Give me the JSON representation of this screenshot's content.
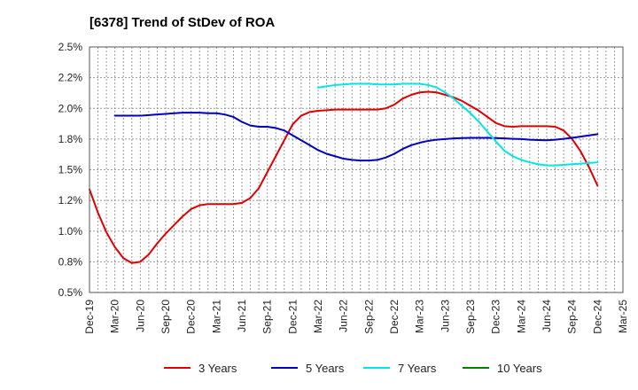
{
  "chart_data": {
    "type": "line",
    "title": "[6378]  Trend of StDev of ROA",
    "xlabel": "",
    "ylabel": "",
    "x_tick_labels": [
      "Dec-19",
      "Mar-20",
      "Jun-20",
      "Sep-20",
      "Dec-20",
      "Mar-21",
      "Jun-21",
      "Sep-21",
      "Dec-21",
      "Mar-22",
      "Jun-22",
      "Sep-22",
      "Dec-22",
      "Mar-23",
      "Jun-23",
      "Sep-23",
      "Dec-23",
      "Mar-24",
      "Jun-24",
      "Sep-24",
      "Dec-24",
      "Mar-25"
    ],
    "y_tick_labels": [
      "2.5%",
      "2.2%",
      "2.0%",
      "1.8%",
      "1.5%",
      "1.2%",
      "1.0%",
      "0.8%",
      "0.5%"
    ],
    "y_tick_values": [
      2.5,
      2.25,
      2.0,
      1.75,
      1.5,
      1.25,
      1.0,
      0.75,
      0.5
    ],
    "ylim": [
      0.5,
      2.5
    ],
    "grid": true,
    "legend_position": "bottom",
    "series": [
      {
        "name": "3 Years",
        "color": "#e00000",
        "points": [
          [
            "Dec-19",
            1.34
          ],
          [
            "Jan-20",
            1.15
          ],
          [
            "Feb-20",
            0.99
          ],
          [
            "Mar-20",
            0.87
          ],
          [
            "Apr-20",
            0.78
          ],
          [
            "May-20",
            0.74
          ],
          [
            "Jun-20",
            0.75
          ],
          [
            "Jul-20",
            0.81
          ],
          [
            "Aug-20",
            0.9
          ],
          [
            "Sep-20",
            0.98
          ],
          [
            "Oct-20",
            1.05
          ],
          [
            "Nov-20",
            1.12
          ],
          [
            "Dec-20",
            1.18
          ],
          [
            "Jan-21",
            1.21
          ],
          [
            "Feb-21",
            1.22
          ],
          [
            "Mar-21",
            1.22
          ],
          [
            "Apr-21",
            1.22
          ],
          [
            "May-21",
            1.22
          ],
          [
            "Jun-21",
            1.23
          ],
          [
            "Jul-21",
            1.27
          ],
          [
            "Aug-21",
            1.35
          ],
          [
            "Sep-21",
            1.48
          ],
          [
            "Oct-21",
            1.61
          ],
          [
            "Nov-21",
            1.74
          ],
          [
            "Dec-21",
            1.87
          ],
          [
            "Jan-22",
            1.94
          ],
          [
            "Feb-22",
            1.97
          ],
          [
            "Mar-22",
            1.98
          ],
          [
            "Apr-22",
            1.985
          ],
          [
            "May-22",
            1.99
          ],
          [
            "Jun-22",
            1.99
          ],
          [
            "Jul-22",
            1.99
          ],
          [
            "Aug-22",
            1.99
          ],
          [
            "Sep-22",
            1.99
          ],
          [
            "Oct-22",
            1.99
          ],
          [
            "Nov-22",
            2.0
          ],
          [
            "Dec-22",
            2.03
          ],
          [
            "Jan-23",
            2.08
          ],
          [
            "Feb-23",
            2.11
          ],
          [
            "Mar-23",
            2.13
          ],
          [
            "Apr-23",
            2.135
          ],
          [
            "May-23",
            2.13
          ],
          [
            "Jun-23",
            2.11
          ],
          [
            "Jul-23",
            2.09
          ],
          [
            "Aug-23",
            2.06
          ],
          [
            "Sep-23",
            2.02
          ],
          [
            "Oct-23",
            1.98
          ],
          [
            "Nov-23",
            1.93
          ],
          [
            "Dec-23",
            1.88
          ],
          [
            "Jan-24",
            1.855
          ],
          [
            "Feb-24",
            1.85
          ],
          [
            "Mar-24",
            1.855
          ],
          [
            "Apr-24",
            1.855
          ],
          [
            "May-24",
            1.855
          ],
          [
            "Jun-24",
            1.855
          ],
          [
            "Jul-24",
            1.85
          ],
          [
            "Aug-24",
            1.82
          ],
          [
            "Sep-24",
            1.75
          ],
          [
            "Oct-24",
            1.65
          ],
          [
            "Nov-24",
            1.52
          ],
          [
            "Dec-24",
            1.37
          ]
        ]
      },
      {
        "name": "5 Years",
        "color": "#0000c0",
        "points": [
          [
            "Mar-20",
            1.94
          ],
          [
            "Apr-20",
            1.94
          ],
          [
            "May-20",
            1.94
          ],
          [
            "Jun-20",
            1.94
          ],
          [
            "Jul-20",
            1.945
          ],
          [
            "Aug-20",
            1.95
          ],
          [
            "Sep-20",
            1.955
          ],
          [
            "Oct-20",
            1.96
          ],
          [
            "Nov-20",
            1.965
          ],
          [
            "Dec-20",
            1.965
          ],
          [
            "Jan-21",
            1.965
          ],
          [
            "Feb-21",
            1.96
          ],
          [
            "Mar-21",
            1.96
          ],
          [
            "Apr-21",
            1.95
          ],
          [
            "May-21",
            1.93
          ],
          [
            "Jun-21",
            1.89
          ],
          [
            "Jul-21",
            1.86
          ],
          [
            "Aug-21",
            1.85
          ],
          [
            "Sep-21",
            1.85
          ],
          [
            "Oct-21",
            1.84
          ],
          [
            "Nov-21",
            1.82
          ],
          [
            "Dec-21",
            1.78
          ],
          [
            "Jan-22",
            1.74
          ],
          [
            "Feb-22",
            1.7
          ],
          [
            "Mar-22",
            1.66
          ],
          [
            "Apr-22",
            1.63
          ],
          [
            "May-22",
            1.61
          ],
          [
            "Jun-22",
            1.59
          ],
          [
            "Jul-22",
            1.58
          ],
          [
            "Aug-22",
            1.575
          ],
          [
            "Sep-22",
            1.575
          ],
          [
            "Oct-22",
            1.58
          ],
          [
            "Nov-22",
            1.6
          ],
          [
            "Dec-22",
            1.63
          ],
          [
            "Jan-23",
            1.67
          ],
          [
            "Feb-23",
            1.7
          ],
          [
            "Mar-23",
            1.72
          ],
          [
            "Apr-23",
            1.735
          ],
          [
            "May-23",
            1.745
          ],
          [
            "Jun-23",
            1.75
          ],
          [
            "Jul-23",
            1.755
          ],
          [
            "Aug-23",
            1.758
          ],
          [
            "Sep-23",
            1.76
          ],
          [
            "Oct-23",
            1.76
          ],
          [
            "Nov-23",
            1.76
          ],
          [
            "Dec-23",
            1.758
          ],
          [
            "Jan-24",
            1.755
          ],
          [
            "Feb-24",
            1.752
          ],
          [
            "Mar-24",
            1.75
          ],
          [
            "Apr-24",
            1.745
          ],
          [
            "May-24",
            1.742
          ],
          [
            "Jun-24",
            1.74
          ],
          [
            "Jul-24",
            1.745
          ],
          [
            "Aug-24",
            1.752
          ],
          [
            "Sep-24",
            1.76
          ],
          [
            "Oct-24",
            1.77
          ],
          [
            "Nov-24",
            1.78
          ],
          [
            "Dec-24",
            1.79
          ]
        ]
      },
      {
        "name": "7 Years",
        "color": "#00e5e5",
        "points": [
          [
            "Mar-22",
            2.17
          ],
          [
            "Apr-22",
            2.18
          ],
          [
            "May-22",
            2.19
          ],
          [
            "Jun-22",
            2.195
          ],
          [
            "Jul-22",
            2.2
          ],
          [
            "Aug-22",
            2.2
          ],
          [
            "Sep-22",
            2.2
          ],
          [
            "Oct-22",
            2.195
          ],
          [
            "Nov-22",
            2.195
          ],
          [
            "Dec-22",
            2.195
          ],
          [
            "Jan-23",
            2.2
          ],
          [
            "Feb-23",
            2.2
          ],
          [
            "Mar-23",
            2.2
          ],
          [
            "Apr-23",
            2.19
          ],
          [
            "May-23",
            2.17
          ],
          [
            "Jun-23",
            2.13
          ],
          [
            "Jul-23",
            2.08
          ],
          [
            "Aug-23",
            2.02
          ],
          [
            "Sep-23",
            1.96
          ],
          [
            "Oct-23",
            1.89
          ],
          [
            "Nov-23",
            1.81
          ],
          [
            "Dec-23",
            1.73
          ],
          [
            "Jan-24",
            1.655
          ],
          [
            "Feb-24",
            1.61
          ],
          [
            "Mar-24",
            1.58
          ],
          [
            "Apr-24",
            1.56
          ],
          [
            "May-24",
            1.545
          ],
          [
            "Jun-24",
            1.535
          ],
          [
            "Jul-24",
            1.535
          ],
          [
            "Aug-24",
            1.54
          ],
          [
            "Sep-24",
            1.545
          ],
          [
            "Oct-24",
            1.55
          ],
          [
            "Nov-24",
            1.555
          ],
          [
            "Dec-24",
            1.56
          ]
        ]
      },
      {
        "name": "10 Years",
        "color": "#008000",
        "points": []
      }
    ]
  }
}
